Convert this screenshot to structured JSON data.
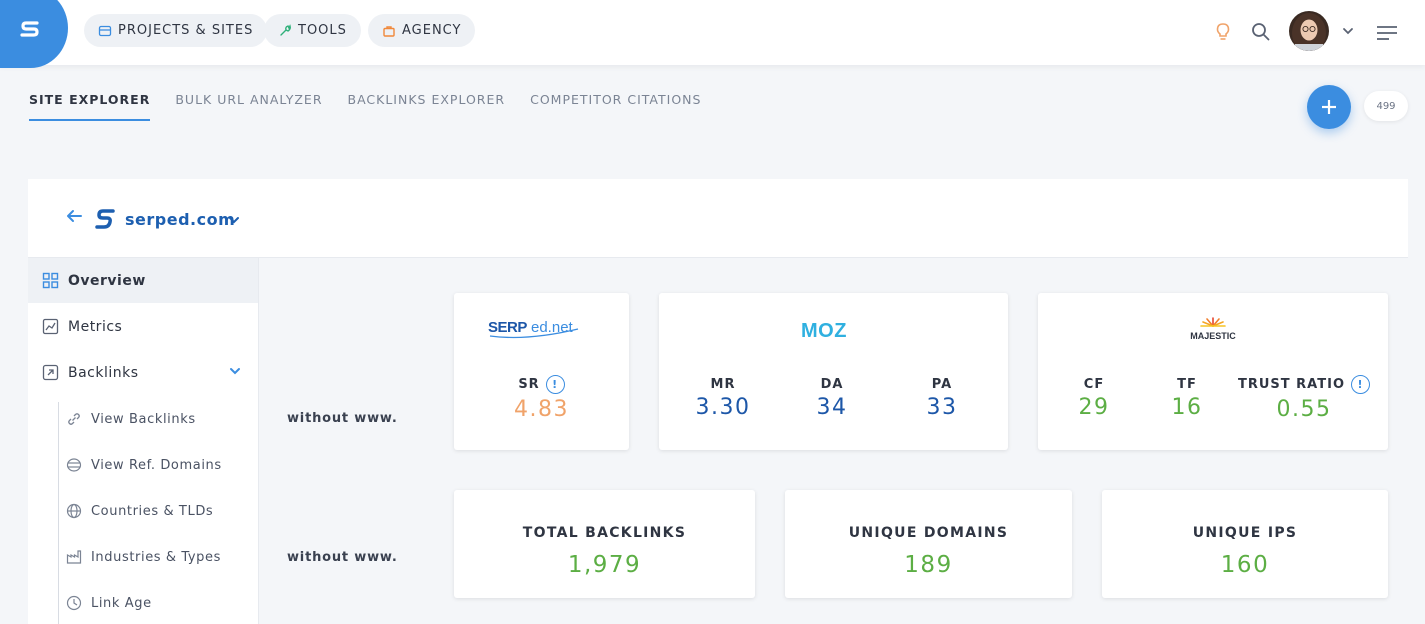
{
  "header": {
    "nav": [
      {
        "label": "PROJECTS & SITES",
        "icon": "layers-icon"
      },
      {
        "label": "TOOLS",
        "icon": "wrench-icon"
      },
      {
        "label": "AGENCY",
        "icon": "briefcase-icon"
      }
    ]
  },
  "subnav": {
    "tabs": [
      "SITE EXPLORER",
      "BULK URL ANALYZER",
      "BACKLINKS EXPLORER",
      "COMPETITOR CITATIONS"
    ],
    "active": "SITE EXPLORER",
    "counter": "499"
  },
  "site": {
    "domain": "serped.com"
  },
  "sidebar": {
    "items": [
      {
        "label": "Overview",
        "icon": "grid-icon"
      },
      {
        "label": "Metrics",
        "icon": "chart-icon"
      },
      {
        "label": "Backlinks",
        "icon": "link-icon"
      }
    ],
    "subitems": [
      {
        "label": "View Backlinks",
        "icon": "link-icon"
      },
      {
        "label": "View Ref. Domains",
        "icon": "server-icon"
      },
      {
        "label": "Countries & TLDs",
        "icon": "globe-icon"
      },
      {
        "label": "Industries & Types",
        "icon": "factory-icon"
      },
      {
        "label": "Link Age",
        "icon": "clock-icon"
      }
    ]
  },
  "main": {
    "row1_label": "without www.",
    "row2_label": "without www.",
    "serped": {
      "brand": "SERPed.net",
      "sr_label": "SR",
      "sr_value": "4.83"
    },
    "moz": {
      "brand": "MOZ",
      "mr_label": "MR",
      "mr_value": "3.30",
      "da_label": "DA",
      "da_value": "34",
      "pa_label": "PA",
      "pa_value": "33"
    },
    "majestic": {
      "brand": "MAJESTIC",
      "cf_label": "CF",
      "cf_value": "29",
      "tf_label": "TF",
      "tf_value": "16",
      "tr_label": "TRUST RATIO",
      "tr_value": "0.55"
    },
    "totals": [
      {
        "label": "TOTAL BACKLINKS",
        "value": "1,979"
      },
      {
        "label": "UNIQUE DOMAINS",
        "value": "189"
      },
      {
        "label": "UNIQUE IPS",
        "value": "160"
      }
    ]
  },
  "colors": {
    "accent": "#3b8de0",
    "serp_orange": "#f0a36a",
    "moz_blue": "#1d57a8",
    "majestic_green": "#5cae44"
  }
}
